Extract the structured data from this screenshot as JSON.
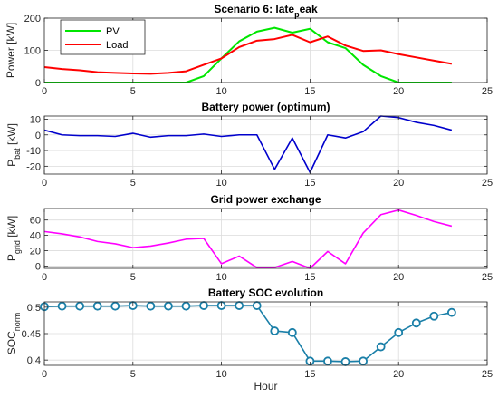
{
  "chart_data": [
    {
      "type": "line",
      "title": "Scenario 6: late",
      "title_sub": "p",
      "title_tail": "eak",
      "ylabel": "Power [kW]",
      "xlabel": "",
      "xlim": [
        0,
        25
      ],
      "ylim": [
        0,
        200
      ],
      "xticks": [
        0,
        5,
        10,
        15,
        20,
        25
      ],
      "yticks": [
        0,
        100,
        200
      ],
      "grid": true,
      "legend": "top-left",
      "series": [
        {
          "name": "PV",
          "color": "#00e600",
          "x": [
            0,
            1,
            2,
            3,
            4,
            5,
            6,
            7,
            8,
            9,
            10,
            11,
            12,
            13,
            14,
            15,
            16,
            17,
            18,
            19,
            20,
            21,
            22,
            23
          ],
          "y": [
            0,
            0,
            0,
            0,
            0,
            0,
            0,
            0,
            0,
            20,
            75,
            128,
            158,
            170,
            155,
            167,
            125,
            107,
            55,
            20,
            0,
            0,
            0,
            0
          ]
        },
        {
          "name": "Load",
          "color": "#ff0000",
          "x": [
            0,
            1,
            2,
            3,
            4,
            5,
            6,
            7,
            8,
            9,
            10,
            11,
            12,
            13,
            14,
            15,
            16,
            17,
            18,
            19,
            20,
            21,
            22,
            23
          ],
          "y": [
            48,
            42,
            38,
            32,
            30,
            28,
            27,
            30,
            35,
            55,
            75,
            110,
            130,
            135,
            148,
            125,
            143,
            115,
            98,
            100,
            88,
            78,
            68,
            58
          ]
        }
      ]
    },
    {
      "type": "line",
      "title": "Battery power (optimum)",
      "ylabel_main": "P",
      "ylabel_sub": "bat",
      "ylabel_unit": "[kW]",
      "xlim": [
        0,
        25
      ],
      "ylim": [
        -25,
        12
      ],
      "xticks": [
        0,
        5,
        10,
        15,
        20,
        25
      ],
      "yticks": [
        -20,
        -10,
        0,
        10
      ],
      "grid": true,
      "series": [
        {
          "color": "#0000cc",
          "x": [
            0,
            1,
            2,
            3,
            4,
            5,
            6,
            7,
            8,
            9,
            10,
            11,
            12,
            13,
            14,
            15,
            16,
            17,
            18,
            19,
            20,
            21,
            22,
            23
          ],
          "y": [
            3,
            0,
            -0.5,
            -0.5,
            -1,
            1,
            -1.5,
            -0.5,
            -0.5,
            0.5,
            -1,
            0,
            0,
            -22,
            -2,
            -24,
            0,
            -2,
            2,
            12,
            11,
            8,
            6,
            3
          ]
        }
      ]
    },
    {
      "type": "line",
      "title": "Grid power exchange",
      "ylabel_main": "P",
      "ylabel_sub": "grid",
      "ylabel_unit": "[kW]",
      "xlim": [
        0,
        25
      ],
      "ylim": [
        -3,
        75
      ],
      "xticks": [
        0,
        5,
        10,
        15,
        20,
        25
      ],
      "yticks": [
        0,
        20,
        40,
        60
      ],
      "grid": true,
      "series": [
        {
          "color": "#ff00ff",
          "x": [
            0,
            1,
            2,
            3,
            4,
            5,
            6,
            7,
            8,
            9,
            10,
            11,
            12,
            13,
            14,
            15,
            16,
            17,
            18,
            19,
            20,
            21,
            22,
            23
          ],
          "y": [
            45,
            42,
            38,
            32,
            29,
            24,
            26,
            30,
            35,
            36,
            3,
            13,
            -2,
            -2,
            6,
            -3,
            19,
            3,
            43,
            67,
            73,
            66,
            58,
            52
          ]
        }
      ]
    },
    {
      "type": "line",
      "title": "Battery SOC evolution",
      "ylabel_main": "SOC",
      "ylabel_sub": "norm",
      "xlabel": "Hour",
      "xlim": [
        0,
        25
      ],
      "ylim": [
        0.39,
        0.51
      ],
      "xticks": [
        0,
        5,
        10,
        15,
        20,
        25
      ],
      "yticks": [
        0.4,
        0.45,
        0.5
      ],
      "ytick_labels": [
        "0.4",
        "0.45",
        "0.5"
      ],
      "grid": true,
      "markers": "circle",
      "series": [
        {
          "color": "#1a7fa8",
          "x": [
            0,
            1,
            2,
            3,
            4,
            5,
            6,
            7,
            8,
            9,
            10,
            11,
            12,
            13,
            14,
            15,
            16,
            17,
            18,
            19,
            20,
            21,
            22,
            23
          ],
          "y": [
            0.501,
            0.502,
            0.502,
            0.502,
            0.502,
            0.503,
            0.502,
            0.502,
            0.502,
            0.503,
            0.503,
            0.503,
            0.503,
            0.455,
            0.452,
            0.398,
            0.398,
            0.397,
            0.398,
            0.425,
            0.452,
            0.47,
            0.483,
            0.49
          ]
        }
      ]
    }
  ]
}
